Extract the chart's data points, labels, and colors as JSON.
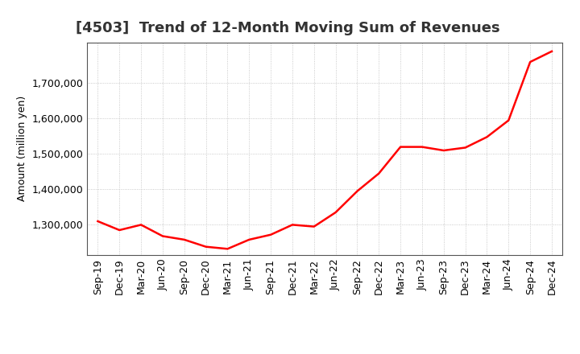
{
  "title": "[4503]  Trend of 12-Month Moving Sum of Revenues",
  "ylabel": "Amount (million yen)",
  "line_color": "#ff0000",
  "line_width": 1.8,
  "background_color": "#ffffff",
  "grid_color": "#bbbbbb",
  "ylim": [
    1215000,
    1815000
  ],
  "yticks": [
    1300000,
    1400000,
    1500000,
    1600000,
    1700000
  ],
  "x_labels": [
    "Sep-19",
    "Dec-19",
    "Mar-20",
    "Jun-20",
    "Sep-20",
    "Dec-20",
    "Mar-21",
    "Jun-21",
    "Sep-21",
    "Dec-21",
    "Mar-22",
    "Jun-22",
    "Sep-22",
    "Dec-22",
    "Mar-23",
    "Jun-23",
    "Sep-23",
    "Dec-23",
    "Mar-24",
    "Jun-24",
    "Sep-24",
    "Dec-24"
  ],
  "values": [
    1310000,
    1285000,
    1300000,
    1268000,
    1258000,
    1238000,
    1232000,
    1258000,
    1272000,
    1300000,
    1295000,
    1335000,
    1395000,
    1445000,
    1520000,
    1520000,
    1510000,
    1518000,
    1548000,
    1595000,
    1760000,
    1790000
  ],
  "title_fontsize": 13,
  "tick_fontsize": 9,
  "ylabel_fontsize": 9
}
